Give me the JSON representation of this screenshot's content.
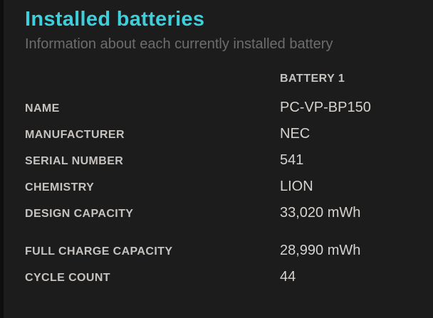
{
  "header": {
    "title": "Installed batteries",
    "subtitle": "Information about each currently installed battery"
  },
  "table": {
    "column_header": "BATTERY 1",
    "rows": [
      {
        "label": "NAME",
        "value": "PC-VP-BP150"
      },
      {
        "label": "MANUFACTURER",
        "value": "NEC"
      },
      {
        "label": "SERIAL NUMBER",
        "value": "541"
      },
      {
        "label": "CHEMISTRY",
        "value": "LION"
      },
      {
        "label": "DESIGN CAPACITY",
        "value": "33,020 mWh"
      },
      {
        "label": "FULL CHARGE CAPACITY",
        "value": "28,990 mWh"
      },
      {
        "label": "CYCLE COUNT",
        "value": "44"
      }
    ]
  },
  "colors": {
    "background": "#1c1c1c",
    "edge": "#0e0e0e",
    "title": "#3ecfdd",
    "subtitle": "#6d6d6d",
    "label": "#c5c2bf",
    "value": "#d5d2cf"
  }
}
